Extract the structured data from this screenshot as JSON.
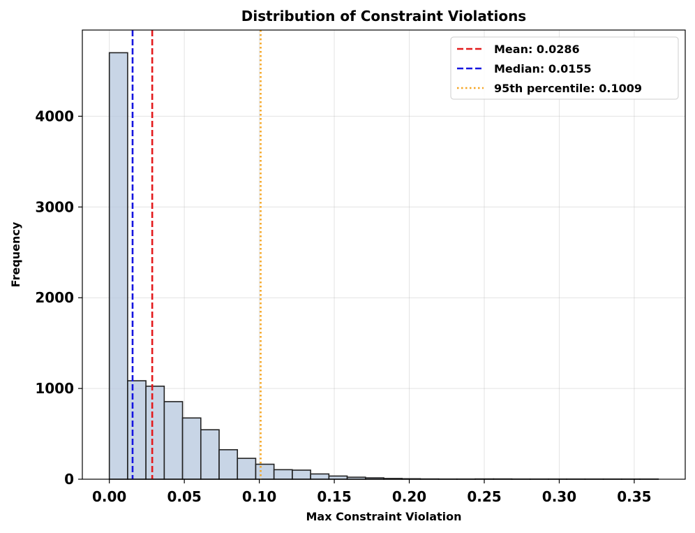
{
  "chart_data": {
    "type": "bar",
    "title": "Distribution of Constraint Violations",
    "xlabel": "Max Constraint Violation",
    "ylabel": "Frequency",
    "xlim": [
      -0.018,
      0.384
    ],
    "ylim": [
      0,
      4950
    ],
    "grid": true,
    "bin_start": 0.0,
    "bin_width": 0.0122,
    "values": [
      4700,
      1085,
      1025,
      855,
      675,
      545,
      325,
      230,
      165,
      105,
      100,
      58,
      35,
      22,
      15,
      8,
      5,
      3,
      2,
      2,
      3,
      3,
      2,
      2,
      2,
      2,
      2,
      2,
      2,
      2
    ],
    "x_ticks": [
      0.0,
      0.05,
      0.1,
      0.15,
      0.2,
      0.25,
      0.3,
      0.35
    ],
    "x_tick_labels": [
      "0.00",
      "0.05",
      "0.10",
      "0.15",
      "0.20",
      "0.25",
      "0.30",
      "0.35"
    ],
    "y_ticks": [
      0,
      1000,
      2000,
      3000,
      4000
    ],
    "y_tick_labels": [
      "0",
      "1000",
      "2000",
      "3000",
      "4000"
    ],
    "reference_lines": [
      {
        "name": "mean",
        "label": "Mean: 0.0286",
        "value": 0.0286,
        "color": "#e31a1c",
        "style": "dashed"
      },
      {
        "name": "median",
        "label": "Median: 0.0155",
        "value": 0.0155,
        "color": "#1515e0",
        "style": "dashed"
      },
      {
        "name": "p95",
        "label": "95th percentile: 0.1009",
        "value": 0.1009,
        "color": "#f5a623",
        "style": "dotted"
      }
    ],
    "legend_position": "top-right",
    "colors": {
      "bar_fill": "#b6c7de",
      "bar_edge": "#222222"
    }
  }
}
